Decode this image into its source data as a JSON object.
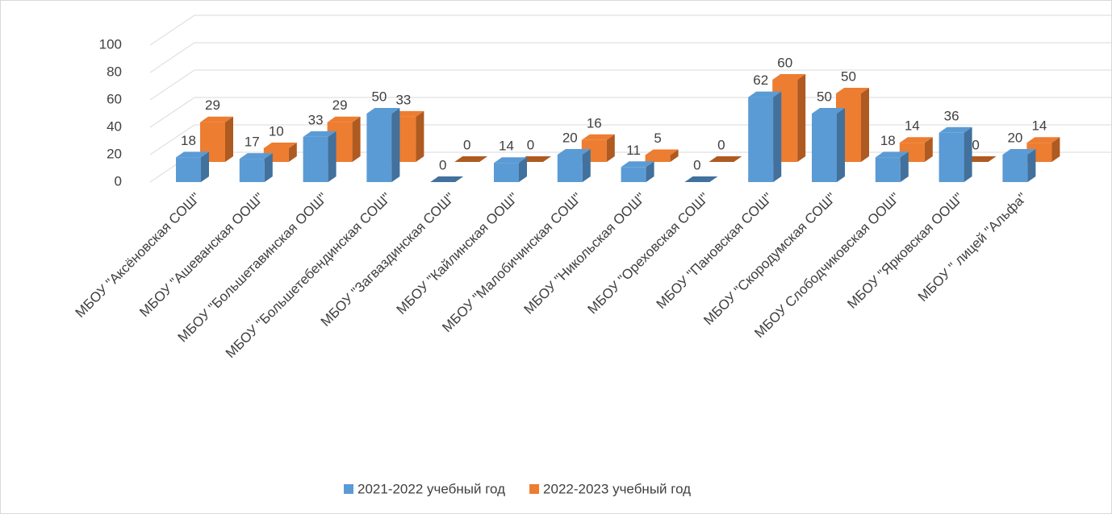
{
  "chart_data": {
    "type": "bar3d",
    "categories": [
      "МБОУ \"Аксёновская СОШ\"",
      "МБОУ \"Ашеванская ООШ\"",
      "МБОУ \"Большетавинская ООШ\"",
      "МБОУ \"Большетебендинская СОШ\"",
      "МБОУ \"Загваздинская СОШ\"",
      "МБОУ \"Кайлинская ООШ\"",
      "МБОУ \"Малобичинская СОШ\"",
      "МБОУ \"Никольская ООШ\"",
      "МБОУ \"Ореховская СОШ\"",
      "МБОУ \"Пановская СОШ\"",
      "МБОУ \"Скородумская СОШ\"",
      "МБОУ Слободчиковская ООШ\"",
      "МБОУ \"Ярковская ООШ\"",
      "МБОУ \" лицей \"Альфа\""
    ],
    "series": [
      {
        "name": "2021-2022 учебный год",
        "color": "#5b9bd5",
        "side_color": "#41719c",
        "values": [
          18,
          17,
          33,
          50,
          0,
          14,
          20,
          11,
          0,
          62,
          50,
          18,
          36,
          20
        ]
      },
      {
        "name": "2022-2023 учебный год",
        "color": "#ed7d31",
        "side_color": "#ae5a21",
        "values": [
          29,
          10,
          29,
          33,
          0,
          0,
          16,
          5,
          0,
          60,
          50,
          14,
          0,
          14
        ]
      }
    ],
    "ylim": [
      0,
      100
    ],
    "yticks": [
      0,
      20,
      40,
      60,
      80,
      100
    ],
    "grid": true,
    "legend": "bottom"
  }
}
